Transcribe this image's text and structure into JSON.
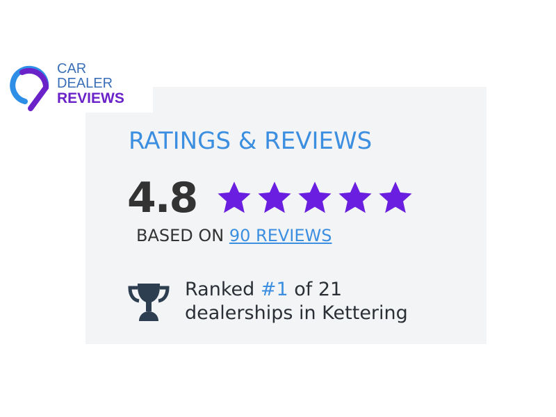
{
  "logo": {
    "line1": "CAR",
    "line2": "DEALER",
    "line3": "REVIEWS"
  },
  "widget": {
    "title": "RATINGS & REVIEWS",
    "score": "4.8",
    "stars": 5,
    "star_color": "#6a1fe0",
    "based_on": "BASED ON ",
    "reviews_link": "90 REVIEWS",
    "ranked_prefix": "Ranked ",
    "rank": "#1",
    "ranked_suffix": " of 21",
    "ranked_line2": "dealerships in Kettering"
  },
  "colors": {
    "accent": "#3b8ee0",
    "panel": "#f3f4f6",
    "text": "#333333"
  }
}
